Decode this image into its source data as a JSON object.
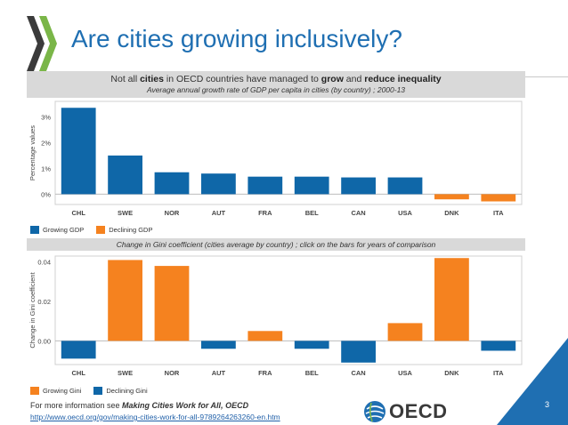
{
  "slide": {
    "title": "Are cities growing inclusively?",
    "page_number": "3",
    "colors": {
      "title": "#1f6fb2",
      "growth_blue": "#0f67a8",
      "decline_orange": "#f5821f",
      "header_gray": "#d9d9d9",
      "chevron_green": "#7ab648",
      "chevron_dark": "#3b3b3b"
    }
  },
  "header": {
    "main_prefix": "Not all ",
    "main_bold1": "cities",
    "main_mid1": " in OECD countries have managed to ",
    "main_bold2": "grow",
    "main_mid2": " and ",
    "main_bold3": "reduce inequality",
    "subtitle": "Average annual growth rate of GDP per capita in cities (by country) ; 2000-13"
  },
  "legend_top": {
    "growing": "Growing GDP",
    "declining": "Declining GDP"
  },
  "section2_header": "Change in Gini coefficient (cities average by country) ; click on the bars for years of comparison",
  "legend_bottom": {
    "growing": "Growing Gini",
    "declining": "Declining Gini"
  },
  "footer": {
    "prefix": "For more information see ",
    "report": "Making Cities Work for All",
    "suffix": ", OECD",
    "link": "http://www.oecd.org/gov/making-cities-work-for-all-9789264263260-en.htm",
    "logo_text": "OECD"
  },
  "chart_data": [
    {
      "type": "bar",
      "title": "Average annual growth rate of GDP per capita in cities (by country) ; 2000-13",
      "ylabel": "Percentage values",
      "xlabel": "",
      "categories": [
        "CHL",
        "SWE",
        "NOR",
        "AUT",
        "FRA",
        "BEL",
        "CAN",
        "USA",
        "DNK",
        "ITA"
      ],
      "values": [
        3.35,
        1.5,
        0.85,
        0.8,
        0.68,
        0.68,
        0.65,
        0.65,
        -0.2,
        -0.28
      ],
      "ylim": [
        -0.4,
        3.6
      ],
      "ticks": [
        0,
        1,
        2,
        3
      ],
      "tick_labels": [
        "0%",
        "1%",
        "2%",
        "3%"
      ],
      "grid": false
    },
    {
      "type": "bar",
      "title": "Change in Gini coefficient (cities average by country) ; click on the bars for years of comparison",
      "ylabel": "Change in Gini coefficient",
      "xlabel": "",
      "categories": [
        "CHL",
        "SWE",
        "NOR",
        "AUT",
        "FRA",
        "BEL",
        "CAN",
        "USA",
        "DNK",
        "ITA"
      ],
      "values": [
        -0.009,
        0.041,
        0.038,
        -0.004,
        0.005,
        -0.004,
        -0.011,
        0.009,
        0.042,
        -0.005
      ],
      "ylim": [
        -0.012,
        0.043
      ],
      "ticks": [
        0.0,
        0.02,
        0.04
      ],
      "tick_labels": [
        "0.00",
        "0.02",
        "0.04"
      ],
      "grid": false
    }
  ]
}
